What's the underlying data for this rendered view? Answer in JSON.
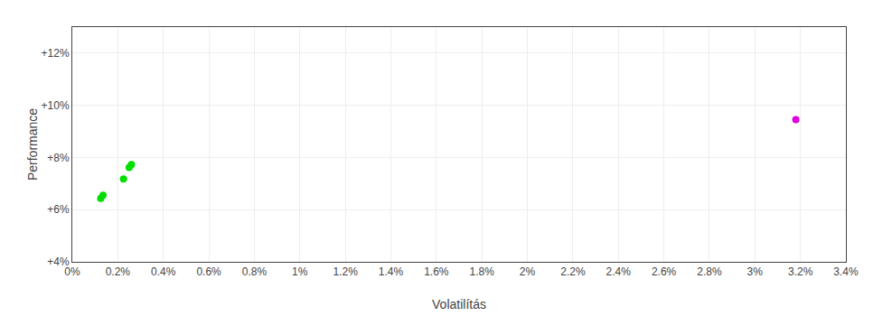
{
  "chart_data": {
    "type": "scatter",
    "xlabel": "Volatilítás",
    "ylabel": "Performance",
    "xlim": [
      0.0,
      0.034
    ],
    "ylim": [
      0.04,
      0.13
    ],
    "xticks": [
      {
        "value": 0.0,
        "label": "0%"
      },
      {
        "value": 0.002,
        "label": "0.2%"
      },
      {
        "value": 0.004,
        "label": "0.4%"
      },
      {
        "value": 0.006,
        "label": "0.6%"
      },
      {
        "value": 0.008,
        "label": "0.8%"
      },
      {
        "value": 0.01,
        "label": "1%"
      },
      {
        "value": 0.012,
        "label": "1.2%"
      },
      {
        "value": 0.014,
        "label": "1.4%"
      },
      {
        "value": 0.016,
        "label": "1.6%"
      },
      {
        "value": 0.018,
        "label": "1.8%"
      },
      {
        "value": 0.02,
        "label": "2%"
      },
      {
        "value": 0.022,
        "label": "2.2%"
      },
      {
        "value": 0.024,
        "label": "2.4%"
      },
      {
        "value": 0.026,
        "label": "2.6%"
      },
      {
        "value": 0.028,
        "label": "2.8%"
      },
      {
        "value": 0.03,
        "label": "3%"
      },
      {
        "value": 0.032,
        "label": "3.2%"
      },
      {
        "value": 0.034,
        "label": "3.4%"
      }
    ],
    "yticks": [
      {
        "value": 0.04,
        "label": "+4%"
      },
      {
        "value": 0.06,
        "label": "+6%"
      },
      {
        "value": 0.08,
        "label": "+8%"
      },
      {
        "value": 0.1,
        "label": "+10%"
      },
      {
        "value": 0.12,
        "label": "+12%"
      }
    ],
    "grid": true,
    "series": [
      {
        "color": "#00dd00",
        "x": [
          0.00125,
          0.00135,
          0.00225,
          0.0025,
          0.0026
        ],
        "values": [
          0.0643,
          0.0655,
          0.0718,
          0.0762,
          0.0773
        ]
      },
      {
        "color": "#dd00dd",
        "x": [
          0.0318
        ],
        "values": [
          0.0945
        ]
      }
    ]
  }
}
